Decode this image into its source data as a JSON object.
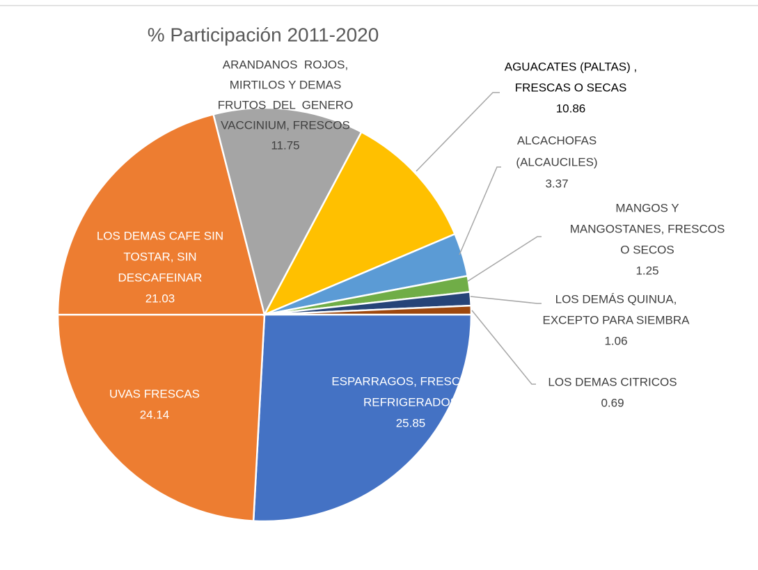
{
  "chart_data": {
    "type": "pie",
    "title": "% Participación 2011-2020",
    "categories": [
      [
        "ESPARRAGOS, FRESCOS O",
        "REFRIGERADOS"
      ],
      [
        "UVAS FRESCAS"
      ],
      [
        "LOS DEMAS CAFE SIN",
        "TOSTAR, SIN",
        "DESCAFEINAR"
      ],
      [
        "ARANDANOS  ROJOS,",
        "MIRTILOS Y DEMAS",
        "FRUTOS  DEL  GENERO",
        "VACCINIUM, FRESCOS"
      ],
      [
        "AGUACATES (PALTAS) ,",
        "FRESCAS O SECAS"
      ],
      [
        "ALCACHOFAS",
        "(ALCAUCILES)"
      ],
      [
        "MANGOS Y",
        "MANGOSTANES, FRESCOS",
        "O SECOS"
      ],
      [
        "LOS DEMÁS QUINUA,",
        "EXCEPTO PARA SIEMBRA"
      ],
      [
        "LOS DEMAS CITRICOS"
      ]
    ],
    "values": [
      25.85,
      24.14,
      21.03,
      11.75,
      10.86,
      3.37,
      1.25,
      1.06,
      0.69
    ],
    "colors": [
      "#4472c4",
      "#ed7d31",
      "#ed7d31",
      "#a5a5a5",
      "#ffc000",
      "#5b9bd5",
      "#70ad47",
      "#264478",
      "#9e480e"
    ]
  }
}
